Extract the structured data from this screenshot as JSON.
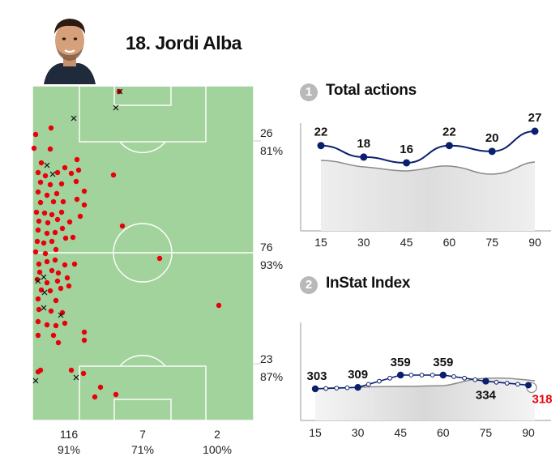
{
  "player": {
    "name": "18. Jordi Alba"
  },
  "pitch": {
    "zone_stats": [
      {
        "count": "26",
        "pct": "81%"
      },
      {
        "count": "76",
        "pct": "93%"
      },
      {
        "count": "23",
        "pct": "87%"
      }
    ],
    "channel_stats": [
      {
        "count": "116",
        "pct": "91%"
      },
      {
        "count": "7",
        "pct": "71%"
      },
      {
        "count": "2",
        "pct": "100%"
      }
    ],
    "colors": {
      "pitch": "#a3d39c",
      "lines": "#ffffff",
      "success": "#e8000b",
      "fail": "#111111"
    },
    "successful_actions": [
      [
        147,
        113
      ],
      [
        63,
        158
      ],
      [
        44,
        166
      ],
      [
        42,
        183
      ],
      [
        62,
        184
      ],
      [
        95,
        197
      ],
      [
        51,
        201
      ],
      [
        80,
        207
      ],
      [
        47,
        213
      ],
      [
        56,
        217
      ],
      [
        71,
        213
      ],
      [
        88,
        214
      ],
      [
        97,
        210
      ],
      [
        140,
        216
      ],
      [
        50,
        225
      ],
      [
        62,
        228
      ],
      [
        76,
        227
      ],
      [
        94,
        224
      ],
      [
        47,
        237
      ],
      [
        58,
        241
      ],
      [
        70,
        239
      ],
      [
        104,
        236
      ],
      [
        50,
        250
      ],
      [
        66,
        249
      ],
      [
        78,
        249
      ],
      [
        95,
        246
      ],
      [
        104,
        253
      ],
      [
        45,
        262
      ],
      [
        55,
        263
      ],
      [
        64,
        265
      ],
      [
        76,
        262
      ],
      [
        99,
        267
      ],
      [
        48,
        273
      ],
      [
        59,
        275
      ],
      [
        71,
        271
      ],
      [
        86,
        274
      ],
      [
        151,
        279
      ],
      [
        47,
        284
      ],
      [
        58,
        288
      ],
      [
        68,
        287
      ],
      [
        77,
        282
      ],
      [
        46,
        298
      ],
      [
        54,
        300
      ],
      [
        64,
        298
      ],
      [
        81,
        294
      ],
      [
        90,
        293
      ],
      [
        44,
        311
      ],
      [
        56,
        313
      ],
      [
        69,
        308
      ],
      [
        48,
        326
      ],
      [
        58,
        323
      ],
      [
        68,
        321
      ],
      [
        80,
        327
      ],
      [
        92,
        326
      ],
      [
        197,
        319
      ],
      [
        49,
        336
      ],
      [
        64,
        334
      ],
      [
        72,
        337
      ],
      [
        46,
        345
      ],
      [
        58,
        349
      ],
      [
        71,
        347
      ],
      [
        83,
        343
      ],
      [
        51,
        358
      ],
      [
        62,
        359
      ],
      [
        75,
        356
      ],
      [
        85,
        353
      ],
      [
        47,
        369
      ],
      [
        69,
        371
      ],
      [
        48,
        382
      ],
      [
        63,
        384
      ],
      [
        77,
        386
      ],
      [
        270,
        377
      ],
      [
        47,
        397
      ],
      [
        58,
        401
      ],
      [
        69,
        402
      ],
      [
        80,
        399
      ],
      [
        47,
        414
      ],
      [
        66,
        414
      ],
      [
        104,
        410
      ],
      [
        72,
        423
      ],
      [
        104,
        420
      ],
      [
        47,
        459
      ],
      [
        50,
        457
      ],
      [
        88,
        457
      ],
      [
        103,
        461
      ],
      [
        124,
        478
      ],
      [
        117,
        490
      ],
      [
        143,
        487
      ]
    ],
    "failed_actions": [
      [
        148,
        113
      ],
      [
        143,
        133
      ],
      [
        91,
        146
      ],
      [
        58,
        204
      ],
      [
        65,
        215
      ],
      [
        47,
        347
      ],
      [
        54,
        342
      ],
      [
        55,
        361
      ],
      [
        54,
        380
      ],
      [
        75,
        389
      ],
      [
        44,
        470
      ],
      [
        94,
        466
      ]
    ]
  },
  "charts": [
    {
      "number": "1",
      "title": "Total actions",
      "chart_data": {
        "type": "line",
        "x": [
          15,
          30,
          45,
          60,
          75,
          90
        ],
        "xticks": [
          "15",
          "30",
          "45",
          "60",
          "75",
          "90"
        ],
        "series": [
          {
            "values": [
              22,
              18,
              16,
              22,
              20,
              27
            ],
            "labels": [
              "22",
              "18",
              "16",
              "22",
              "20",
              "27"
            ]
          }
        ],
        "ylim": [
          0,
          28
        ]
      }
    },
    {
      "number": "2",
      "title": "InStat Index",
      "chart_data": {
        "type": "line",
        "x": [
          15,
          30,
          45,
          60,
          75,
          90
        ],
        "xticks": [
          "15",
          "30",
          "45",
          "60",
          "75",
          "90"
        ],
        "series": [
          {
            "values": [
              303,
              309,
              359,
              359,
              334,
              318
            ],
            "labels": [
              "303",
              "309",
              "359",
              "359",
              "334",
              "318"
            ]
          }
        ]
      }
    }
  ]
}
